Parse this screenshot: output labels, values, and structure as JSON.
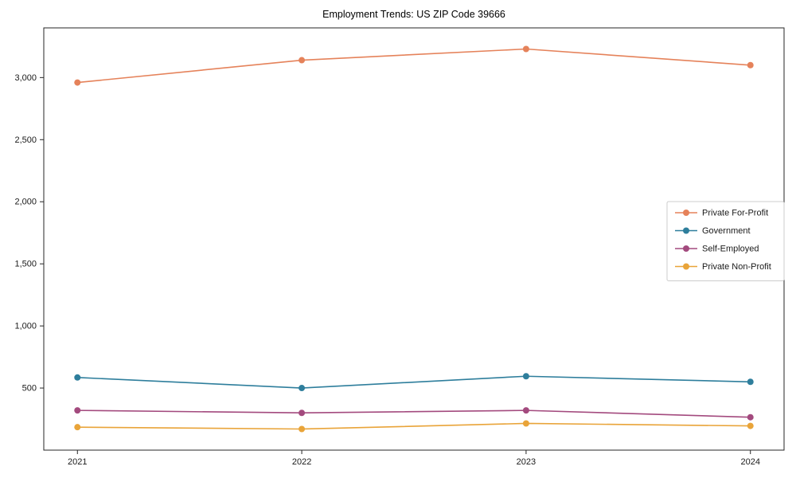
{
  "chart_data": {
    "type": "line",
    "title": "Employment Trends: US ZIP Code 39666",
    "x": [
      2021,
      2022,
      2023,
      2024
    ],
    "x_tick_labels": [
      "2021",
      "2022",
      "2023",
      "2024"
    ],
    "y_ticks": [
      500,
      1000,
      1500,
      2000,
      2500,
      3000
    ],
    "y_tick_labels": [
      "500",
      "1,000",
      "1,500",
      "2,000",
      "2,500",
      "3,000"
    ],
    "xlim": [
      2020.85,
      2024.15
    ],
    "ylim": [
      0,
      3400
    ],
    "grid": false,
    "marker": "circle",
    "legend_position": "center right",
    "series": [
      {
        "name": "Private For-Profit",
        "color": "#e5825a",
        "values": [
          2960,
          3140,
          3230,
          3100
        ]
      },
      {
        "name": "Government",
        "color": "#2e7e9c",
        "values": [
          585,
          500,
          595,
          550
        ]
      },
      {
        "name": "Self-Employed",
        "color": "#a34a7e",
        "values": [
          320,
          300,
          320,
          265
        ]
      },
      {
        "name": "Private Non-Profit",
        "color": "#e9a439",
        "values": [
          185,
          170,
          215,
          195
        ]
      }
    ]
  },
  "colors": {
    "background": "#ffffff",
    "spine": "#262626",
    "tick_label": "#1a1a1a",
    "legend_border": "#cccccc"
  }
}
